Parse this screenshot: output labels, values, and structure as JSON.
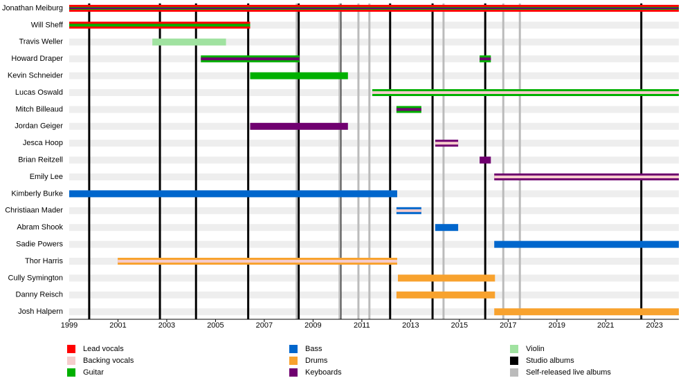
{
  "chart_data": {
    "type": "timeline",
    "xlim": [
      1999,
      2024
    ],
    "xticks": [
      1999,
      2001,
      2003,
      2005,
      2007,
      2009,
      2011,
      2013,
      2015,
      2017,
      2019,
      2021,
      2023
    ],
    "roles": [
      {
        "name": "Lead vocals",
        "color": "#ff0000"
      },
      {
        "name": "Backing vocals",
        "color": "#f5cccc"
      },
      {
        "name": "Guitar",
        "color": "#00b000"
      },
      {
        "name": "Bass",
        "color": "#0066cc"
      },
      {
        "name": "Drums",
        "color": "#f8a22e"
      },
      {
        "name": "Keyboards",
        "color": "#700070"
      },
      {
        "name": "Violin",
        "color": "#a0e2a0"
      }
    ],
    "albums": [
      {
        "name": "Studio albums",
        "color": "#000000",
        "x": [
          1999.82,
          2002.72,
          2004.2,
          2006.34,
          2008.41,
          2010.12,
          2012.16,
          2013.9,
          2016.06,
          2022.46
        ]
      },
      {
        "name": "Self-released live albums",
        "color": "#bbbbbb",
        "x": [
          2008.33,
          2010.09,
          2010.86,
          2011.31,
          2014.35,
          2016.8,
          2017.48
        ]
      }
    ],
    "members": [
      {
        "name": "Jonathan Meiburg",
        "periods": [
          {
            "start": 1999,
            "end": 2024,
            "roles": [
              "Lead vocals",
              "Guitar",
              "Keyboards"
            ]
          }
        ]
      },
      {
        "name": "Will Sheff",
        "periods": [
          {
            "start": 1999,
            "end": 2006.42,
            "roles": [
              "Lead vocals",
              "Guitar"
            ]
          }
        ]
      },
      {
        "name": "Travis Weller",
        "periods": [
          {
            "start": 2002.41,
            "end": 2005.43,
            "roles": [
              "Violin"
            ]
          }
        ]
      },
      {
        "name": "Howard Draper",
        "periods": [
          {
            "start": 2004.4,
            "end": 2008.44,
            "roles": [
              "Guitar",
              "Keyboards"
            ]
          },
          {
            "start": 2015.83,
            "end": 2016.29,
            "roles": [
              "Guitar",
              "Keyboards"
            ]
          }
        ]
      },
      {
        "name": "Kevin Schneider",
        "periods": [
          {
            "start": 2006.42,
            "end": 2010.43,
            "roles": [
              "Guitar"
            ]
          }
        ]
      },
      {
        "name": "Lucas Oswald",
        "periods": [
          {
            "start": 2011.43,
            "end": 2024,
            "roles": [
              "Guitar",
              "Backing vocals"
            ]
          }
        ]
      },
      {
        "name": "Mitch Billeaud",
        "periods": [
          {
            "start": 2012.42,
            "end": 2013.44,
            "roles": [
              "Guitar",
              "Keyboards"
            ]
          }
        ]
      },
      {
        "name": "Jordan Geiger",
        "periods": [
          {
            "start": 2006.42,
            "end": 2010.43,
            "roles": [
              "Keyboards"
            ]
          }
        ]
      },
      {
        "name": "Jesca Hoop",
        "periods": [
          {
            "start": 2014.01,
            "end": 2014.95,
            "roles": [
              "Keyboards",
              "Backing vocals"
            ]
          }
        ]
      },
      {
        "name": "Brian Reitzell",
        "periods": [
          {
            "start": 2015.83,
            "end": 2016.29,
            "roles": [
              "Keyboards"
            ]
          }
        ]
      },
      {
        "name": "Emily Lee",
        "periods": [
          {
            "start": 2016.43,
            "end": 2024,
            "roles": [
              "Keyboards",
              "Backing vocals"
            ]
          }
        ]
      },
      {
        "name": "Kimberly Burke",
        "periods": [
          {
            "start": 1999,
            "end": 2012.45,
            "roles": [
              "Bass"
            ]
          }
        ]
      },
      {
        "name": "Christiaan Mader",
        "periods": [
          {
            "start": 2012.42,
            "end": 2013.44,
            "roles": [
              "Bass",
              "Backing vocals"
            ]
          }
        ]
      },
      {
        "name": "Abram Shook",
        "periods": [
          {
            "start": 2014.01,
            "end": 2014.95,
            "roles": [
              "Bass"
            ]
          }
        ]
      },
      {
        "name": "Sadie Powers",
        "periods": [
          {
            "start": 2016.43,
            "end": 2024,
            "roles": [
              "Bass"
            ]
          }
        ]
      },
      {
        "name": "Thor Harris",
        "periods": [
          {
            "start": 2000.99,
            "end": 2012.45,
            "roles": [
              "Drums",
              "Backing vocals"
            ]
          }
        ]
      },
      {
        "name": "Cully Symington",
        "periods": [
          {
            "start": 2012.48,
            "end": 2016.46,
            "roles": [
              "Drums"
            ]
          }
        ]
      },
      {
        "name": "Danny Reisch",
        "periods": [
          {
            "start": 2012.42,
            "end": 2016.46,
            "roles": [
              "Drums"
            ]
          }
        ]
      },
      {
        "name": "Josh Halpern",
        "periods": [
          {
            "start": 2016.43,
            "end": 2024,
            "roles": [
              "Drums"
            ]
          }
        ]
      }
    ]
  }
}
